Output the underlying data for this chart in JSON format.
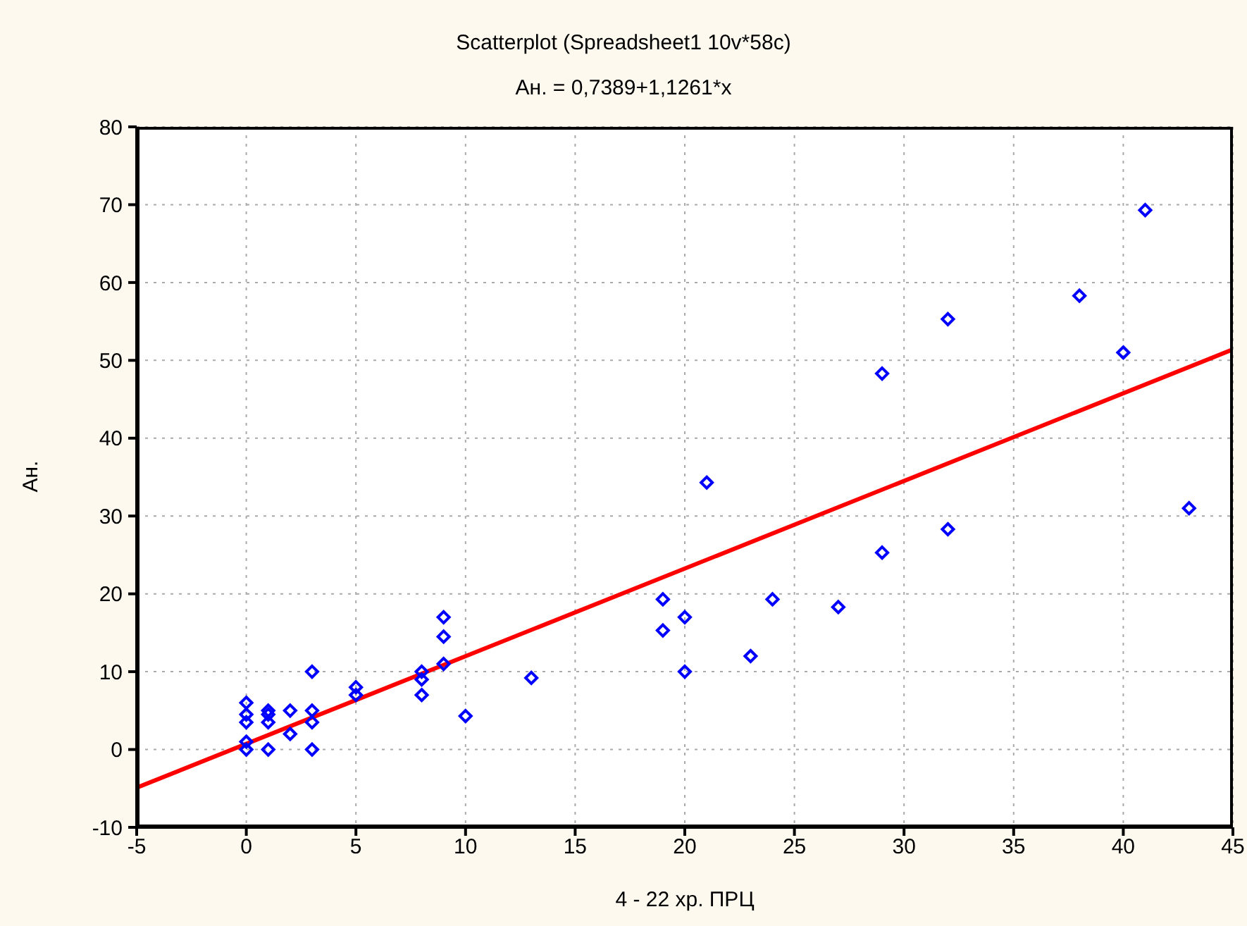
{
  "chart_data": {
    "type": "scatter",
    "title": "Scatterplot (Spreadsheet1 10v*58c)",
    "subtitle": "Ан. = 0,7389+1,1261*x",
    "xlabel": "4 - 22 хр. ПРЦ",
    "ylabel": "Ан.",
    "xlim": [
      -5,
      45
    ],
    "xticks": [
      -5,
      0,
      5,
      10,
      15,
      20,
      25,
      30,
      35,
      40,
      45
    ],
    "ylim": [
      -10,
      80
    ],
    "yticks": [
      -10,
      0,
      10,
      20,
      30,
      40,
      50,
      60,
      70,
      80
    ],
    "grid": true,
    "legend": false,
    "series": [
      {
        "marker": "diamond",
        "color": "#0000ff",
        "x": [
          0,
          0,
          0,
          0,
          0,
          1,
          1,
          1,
          1,
          2,
          2,
          3,
          3,
          3,
          3,
          5,
          5,
          8,
          8,
          8,
          9,
          9,
          9,
          10,
          13,
          19,
          19,
          20,
          20,
          21,
          23,
          24,
          27,
          29,
          29,
          32,
          32,
          38,
          40,
          41,
          43
        ],
        "values": [
          6,
          4.5,
          3.5,
          1,
          0,
          5,
          4.5,
          3.5,
          0,
          5,
          2,
          10,
          5,
          3.5,
          0,
          8,
          7,
          10,
          9,
          7,
          17,
          14.5,
          11,
          4.3,
          9.2,
          19.3,
          15.3,
          17,
          10,
          34.3,
          12,
          19.3,
          18.3,
          48.3,
          25.3,
          55.3,
          28.3,
          58.3,
          51,
          69.3,
          31
        ]
      },
      {
        "type": "line",
        "marker": "none",
        "line_style": "solid",
        "color": "#ff0000",
        "x": [
          -5,
          45
        ],
        "values": [
          -4.9,
          51.4
        ]
      }
    ]
  }
}
